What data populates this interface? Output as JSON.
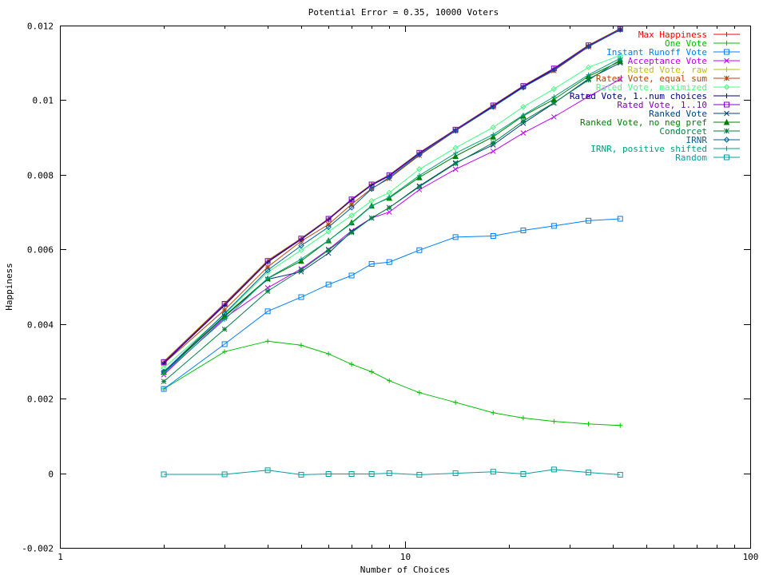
{
  "chart_data": {
    "type": "line",
    "title": "Potential Error = 0.35, 10000 Voters",
    "xlabel": "Number of Choices",
    "ylabel": "Happiness",
    "xscale": "log",
    "xlim": [
      1,
      100
    ],
    "ylim": [
      -0.002,
      0.012
    ],
    "x_ticks": [
      1,
      10,
      100
    ],
    "x_tick_labels": [
      "1",
      "10",
      "100"
    ],
    "y_ticks": [
      -0.002,
      0,
      0.002,
      0.004,
      0.006,
      0.008,
      0.01,
      0.012
    ],
    "y_tick_labels": [
      "-0.002",
      "0",
      "0.002",
      "0.004",
      "0.006",
      "0.008",
      "0.01",
      "0.012"
    ],
    "legend_position": "top-right",
    "grid": false,
    "x": [
      2,
      3,
      4,
      5,
      6,
      7,
      8,
      9,
      11,
      14,
      18,
      22,
      27,
      34,
      42
    ],
    "series": [
      {
        "name": "Max Happiness",
        "color": "#ff0000",
        "marker": "plus",
        "values": [
          0.00296,
          0.00452,
          0.00568,
          0.00628,
          0.00681,
          0.00733,
          0.00773,
          0.00798,
          0.00858,
          0.0092,
          0.00985,
          0.01037,
          0.01084,
          0.01146,
          0.0119
        ]
      },
      {
        "name": "One Vote",
        "color": "#00c000",
        "marker": "plus",
        "values": [
          0.00226,
          0.00326,
          0.00354,
          0.00343,
          0.0032,
          0.00292,
          0.00272,
          0.00248,
          0.00216,
          0.0019,
          0.00162,
          0.00148,
          0.00139,
          0.00132,
          0.00128
        ]
      },
      {
        "name": "Instant Runoff Vote",
        "color": "#0080ff",
        "marker": "square",
        "values": [
          0.00226,
          0.00346,
          0.00434,
          0.00472,
          0.00506,
          0.0053,
          0.00561,
          0.00566,
          0.00598,
          0.00633,
          0.00636,
          0.00651,
          0.00663,
          0.00677,
          0.00682
        ]
      },
      {
        "name": "Acceptance Vote",
        "color": "#c000ff",
        "marker": "x",
        "values": [
          0.00264,
          0.00416,
          0.00497,
          0.00548,
          0.006,
          0.0065,
          0.00684,
          0.007,
          0.0076,
          0.00815,
          0.00863,
          0.00912,
          0.00955,
          0.0101,
          0.01056
        ]
      },
      {
        "name": "Rated Vote, raw",
        "color": "#c0c000",
        "marker": "plus",
        "values": [
          0.003,
          0.00456,
          0.00571,
          0.0063,
          0.00683,
          0.00735,
          0.00775,
          0.008,
          0.0086,
          0.00922,
          0.00987,
          0.01039,
          0.01086,
          0.01148,
          0.01192
        ]
      },
      {
        "name": "Rated Vote, equal sum",
        "color": "#c04000",
        "marker": "star",
        "values": [
          0.00294,
          0.00438,
          0.00553,
          0.00622,
          0.00667,
          0.00721,
          0.00763,
          0.0079,
          0.00852,
          0.00918,
          0.00982,
          0.01035,
          0.01079,
          0.01143,
          0.01189
        ]
      },
      {
        "name": "Rated Vote, maximized",
        "color": "#40ff80",
        "marker": "diamond",
        "values": [
          0.00282,
          0.00426,
          0.00539,
          0.00598,
          0.00648,
          0.00691,
          0.0073,
          0.00752,
          0.00815,
          0.00872,
          0.00927,
          0.00982,
          0.0103,
          0.01088,
          0.0112
        ]
      },
      {
        "name": "Rated Vote, 1..num choices",
        "color": "#000080",
        "marker": "plus",
        "values": [
          0.00295,
          0.0045,
          0.00566,
          0.00627,
          0.0068,
          0.00732,
          0.00772,
          0.00797,
          0.00857,
          0.00921,
          0.00984,
          0.01036,
          0.01083,
          0.01145,
          0.01188
        ]
      },
      {
        "name": "Rated Vote, 1..10",
        "color": "#8000c0",
        "marker": "square",
        "values": [
          0.00298,
          0.00454,
          0.00569,
          0.00629,
          0.00682,
          0.00734,
          0.00774,
          0.00799,
          0.00859,
          0.00921,
          0.00986,
          0.01038,
          0.01085,
          0.01147,
          0.01191
        ]
      },
      {
        "name": "Ranked Vote",
        "color": "#004080",
        "marker": "x",
        "values": [
          0.0027,
          0.0042,
          0.0052,
          0.0054,
          0.0059,
          0.00648,
          0.00684,
          0.00712,
          0.0077,
          0.00832,
          0.0088,
          0.00938,
          0.00992,
          0.01057,
          0.011
        ]
      },
      {
        "name": "Ranked Vote, no neg pref",
        "color": "#008000",
        "marker": "triangle",
        "values": [
          0.00272,
          0.00422,
          0.00522,
          0.00569,
          0.00624,
          0.00672,
          0.00717,
          0.00738,
          0.00793,
          0.0085,
          0.00902,
          0.00958,
          0.01002,
          0.01064,
          0.01104
        ]
      },
      {
        "name": "Condorcet",
        "color": "#008040",
        "marker": "star",
        "values": [
          0.00246,
          0.00386,
          0.00488,
          0.00545,
          0.00598,
          0.00645,
          0.00684,
          0.00712,
          0.00768,
          0.0083,
          0.00886,
          0.00944,
          0.00993,
          0.01054,
          0.01108
        ]
      },
      {
        "name": "IRNR",
        "color": "#0060a0",
        "marker": "diamond",
        "values": [
          0.00272,
          0.00428,
          0.00544,
          0.0061,
          0.0066,
          0.00712,
          0.00762,
          0.00793,
          0.00854,
          0.00918,
          0.00982,
          0.01034,
          0.01081,
          0.01144,
          0.01189
        ]
      },
      {
        "name": "IRNR, positive shifted",
        "color": "#00a080",
        "marker": "plus",
        "values": [
          0.00268,
          0.00412,
          0.00523,
          0.00574,
          0.00624,
          0.0067,
          0.00716,
          0.0074,
          0.00798,
          0.00858,
          0.00908,
          0.0096,
          0.01009,
          0.01068,
          0.01112
        ]
      },
      {
        "name": "Random",
        "color": "#00a0a0",
        "marker": "square",
        "values": [
          -3e-05,
          -3e-05,
          8e-05,
          -4e-05,
          -2e-05,
          -2e-05,
          -2e-05,
          0.0,
          -4e-05,
          0.0,
          4e-05,
          -2e-05,
          0.0001,
          2e-05,
          -4e-05
        ]
      }
    ]
  }
}
